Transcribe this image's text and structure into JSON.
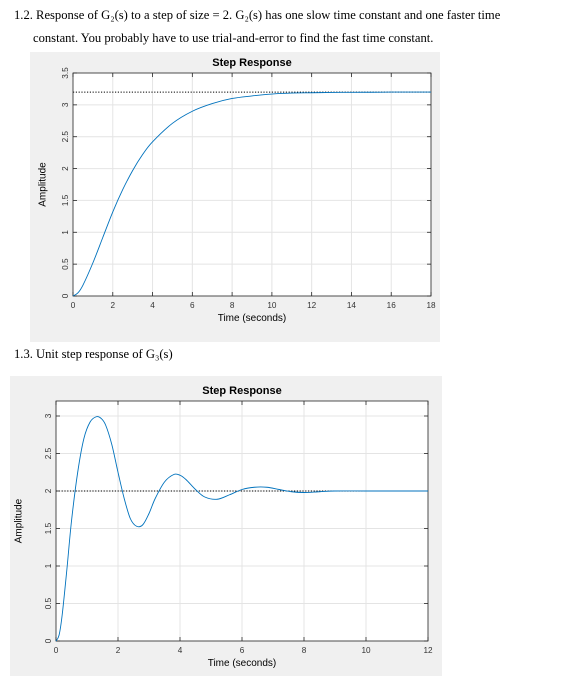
{
  "document": {
    "section_1_2": {
      "line1": "1.2. Response of G₂(s) to a step of size = 2. G₂(s) has one slow time constant and one faster time",
      "line2": "constant. You probably have to use trial-and-error to find the fast time constant."
    },
    "section_1_3": {
      "heading": "1.3. Unit step response of G₃(s)"
    }
  },
  "chart_data": [
    {
      "type": "line",
      "title": "Step Response",
      "xlabel": "Time (seconds)",
      "ylabel": "Amplitude",
      "xlim": [
        0,
        18
      ],
      "ylim": [
        0,
        3.5
      ],
      "xticks": [
        "0",
        "2",
        "4",
        "6",
        "8",
        "10",
        "12",
        "14",
        "16",
        "18"
      ],
      "yticks": [
        "0",
        "0.5",
        "1",
        "1.5",
        "2",
        "2.5",
        "3",
        "3.5"
      ],
      "grid": true,
      "steady_state": 3.2,
      "series": [
        {
          "x": [
            0,
            0.25,
            0.5,
            1,
            1.5,
            2,
            2.5,
            3,
            3.5,
            4,
            5,
            6,
            7,
            8,
            9,
            10,
            11,
            12,
            13,
            14,
            15,
            16,
            17,
            18
          ],
          "y": [
            0,
            0.05,
            0.17,
            0.52,
            0.92,
            1.32,
            1.67,
            1.97,
            2.22,
            2.42,
            2.71,
            2.9,
            3.02,
            3.1,
            3.14,
            3.17,
            3.185,
            3.19,
            3.195,
            3.197,
            3.198,
            3.2,
            3.2,
            3.2
          ]
        }
      ]
    },
    {
      "type": "line",
      "title": "Step Response",
      "xlabel": "Time (seconds)",
      "ylabel": "Amplitude",
      "xlim": [
        0,
        12
      ],
      "ylim": [
        0,
        3.2
      ],
      "xticks": [
        "0",
        "2",
        "4",
        "6",
        "8",
        "10",
        "12"
      ],
      "yticks": [
        "0",
        "0.5",
        "1",
        "1.5",
        "2",
        "2.5",
        "3"
      ],
      "grid": true,
      "steady_state": 2.0,
      "series": [
        {
          "x": [
            0,
            0.1,
            0.2,
            0.35,
            0.5,
            0.7,
            0.9,
            1.1,
            1.3,
            1.45,
            1.6,
            1.8,
            2.0,
            2.2,
            2.4,
            2.6,
            2.8,
            3.0,
            3.2,
            3.5,
            3.8,
            4.0,
            4.2,
            4.5,
            4.8,
            5.2,
            5.6,
            6.0,
            6.4,
            6.8,
            7.2,
            7.6,
            8.0,
            8.5,
            9,
            10,
            11,
            12
          ],
          "y": [
            0,
            0.08,
            0.35,
            0.95,
            1.6,
            2.25,
            2.7,
            2.92,
            2.99,
            2.97,
            2.88,
            2.62,
            2.25,
            1.9,
            1.63,
            1.53,
            1.55,
            1.7,
            1.9,
            2.12,
            2.22,
            2.21,
            2.15,
            2.02,
            1.92,
            1.89,
            1.95,
            2.02,
            2.05,
            2.05,
            2.02,
            1.99,
            1.98,
            1.99,
            2.0,
            2.0,
            2.0,
            2.0
          ]
        }
      ]
    }
  ]
}
